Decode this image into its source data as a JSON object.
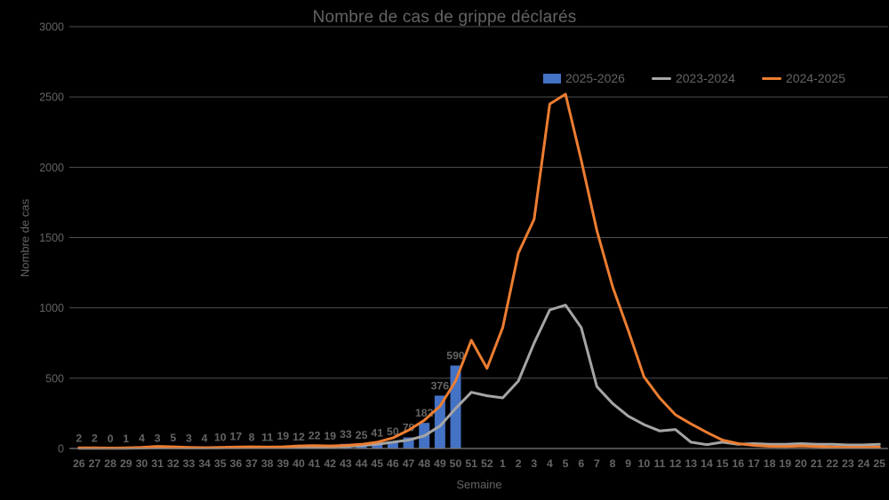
{
  "colors": {
    "background": "#000000",
    "blue": "#4472C4",
    "gray": "#A5A5A5",
    "orange": "#ED7D31",
    "text": "#646464",
    "gridline": "#4f4f4f",
    "axisline": "#7a7a7a"
  },
  "chart_data": {
    "type": "bar",
    "title": "Nombre de cas de grippe déclarés",
    "xlabel": "Semaine",
    "ylabel": "Nombre de cas",
    "ylim": [
      0,
      3000
    ],
    "yticks": [
      0,
      500,
      1000,
      1500,
      2000,
      2500,
      3000
    ],
    "grid": true,
    "legend_position": "top-right",
    "categories": [
      "26",
      "27",
      "28",
      "29",
      "30",
      "31",
      "32",
      "33",
      "34",
      "35",
      "36",
      "37",
      "38",
      "39",
      "40",
      "41",
      "42",
      "43",
      "44",
      "45",
      "46",
      "47",
      "48",
      "49",
      "50",
      "51",
      "52",
      "1",
      "2",
      "3",
      "4",
      "5",
      "6",
      "7",
      "8",
      "9",
      "10",
      "11",
      "12",
      "13",
      "14",
      "15",
      "16",
      "17",
      "18",
      "19",
      "20",
      "21",
      "22",
      "23",
      "24",
      "25"
    ],
    "bar_series": {
      "name": "2025-2026",
      "color_key": "blue",
      "show_data_labels": true,
      "values": [
        2,
        2,
        0,
        1,
        4,
        3,
        5,
        3,
        4,
        10,
        17,
        8,
        11,
        19,
        12,
        22,
        19,
        33,
        25,
        41,
        50,
        79,
        182,
        376,
        590,
        null,
        null,
        null,
        null,
        null,
        null,
        null,
        null,
        null,
        null,
        null,
        null,
        null,
        null,
        null,
        null,
        null,
        null,
        null,
        null,
        null,
        null,
        null,
        null,
        null,
        null,
        null
      ]
    },
    "line_series": [
      {
        "name": "2023-2024",
        "color_key": "gray",
        "values": [
          2,
          2,
          1,
          2,
          3,
          5,
          5,
          4,
          4,
          5,
          6,
          7,
          7,
          8,
          10,
          10,
          12,
          15,
          20,
          30,
          45,
          60,
          90,
          160,
          285,
          400,
          375,
          360,
          480,
          750,
          985,
          1020,
          860,
          440,
          320,
          230,
          170,
          125,
          135,
          45,
          27,
          45,
          30,
          35,
          30,
          30,
          35,
          30,
          30,
          25,
          25,
          30
        ]
      },
      {
        "name": "2024-2025",
        "color_key": "orange",
        "values": [
          5,
          5,
          3,
          5,
          8,
          15,
          12,
          8,
          6,
          8,
          10,
          12,
          10,
          12,
          18,
          20,
          18,
          22,
          30,
          45,
          75,
          130,
          200,
          300,
          480,
          770,
          570,
          860,
          1390,
          1630,
          2450,
          2520,
          2050,
          1550,
          1150,
          840,
          510,
          360,
          240,
          175,
          115,
          60,
          35,
          22,
          16,
          14,
          18,
          14,
          10,
          8,
          8,
          10
        ]
      }
    ]
  }
}
